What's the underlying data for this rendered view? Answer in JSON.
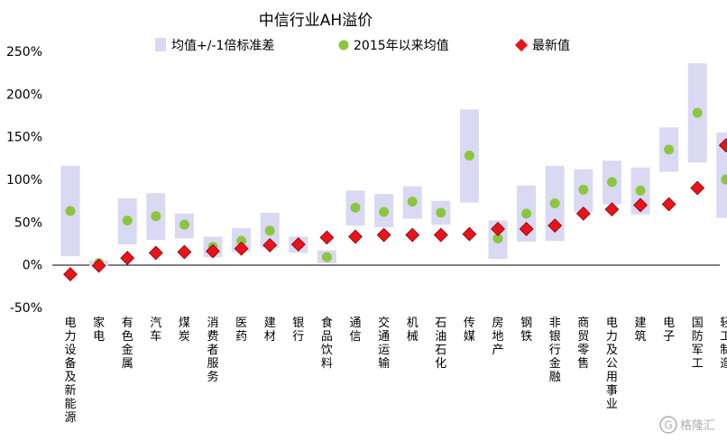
{
  "chart_data": {
    "type": "range_scatter",
    "title": "中信行业AH溢价",
    "legend": {
      "band_label": "均值+/-1倍标准差",
      "mean_label": "2015年以来均值",
      "latest_label": "最新值",
      "placement": "top"
    },
    "colors": {
      "band": "#d9d9f3",
      "mean": "#8cc63f",
      "latest": "#e8141b"
    },
    "yticks": [
      "250%",
      "200%",
      "150%",
      "100%",
      "50%",
      "0%",
      "-50%"
    ],
    "ylim": [
      -50,
      250
    ],
    "grid": false,
    "categories": [
      "电力设备及新能源",
      "家电",
      "有色金属",
      "汽车",
      "煤炭",
      "消费者服务",
      "医药",
      "建材",
      "银行",
      "食品饮料",
      "通信",
      "交通运输",
      "机械",
      "石油石化",
      "传媒",
      "房地产",
      "钢铁",
      "非银行金融",
      "商贸零售",
      "电力及公用事业",
      "建筑",
      "电子",
      "国防军工",
      "轻工制造"
    ],
    "band_low": [
      10,
      -1,
      24,
      29,
      31,
      9,
      15,
      20,
      14,
      2,
      46,
      44,
      54,
      47,
      73,
      7,
      27,
      28,
      62,
      71,
      59,
      109,
      120,
      55
    ],
    "band_high": [
      116,
      5,
      78,
      84,
      60,
      33,
      43,
      61,
      33,
      17,
      87,
      83,
      92,
      75,
      182,
      52,
      93,
      116,
      112,
      122,
      114,
      161,
      236,
      155
    ],
    "mean": [
      63,
      2,
      52,
      57,
      47,
      21,
      28,
      40,
      24,
      9,
      67,
      62,
      74,
      61,
      128,
      31,
      60,
      72,
      88,
      97,
      87,
      135,
      178,
      100
    ],
    "latest": [
      -11,
      -1,
      8,
      14,
      15,
      16,
      19,
      23,
      24,
      32,
      33,
      35,
      35,
      35,
      36,
      42,
      42,
      46,
      60,
      65,
      70,
      71,
      90,
      140
    ]
  },
  "watermark": {
    "text": "格隆汇",
    "icon": "g-logo-icon"
  }
}
